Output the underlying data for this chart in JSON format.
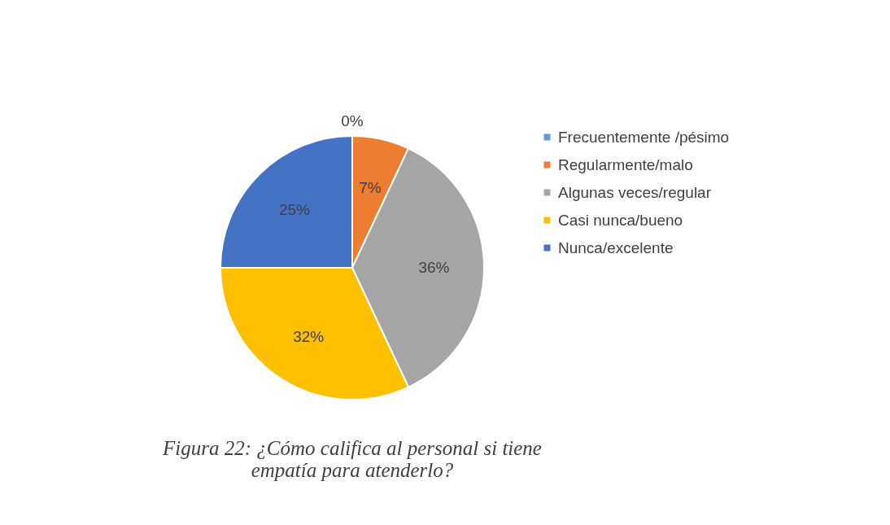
{
  "chart_data": {
    "type": "pie",
    "categories": [
      "Frecuentemente /pésimo",
      "Regularmente/malo",
      "Algunas veces/regular",
      "Casi nunca/bueno",
      "Nunca/excelente"
    ],
    "values": [
      0,
      7,
      36,
      32,
      25
    ],
    "colors": [
      "#5b9bd5",
      "#ed7d31",
      "#a5a5a5",
      "#ffc000",
      "#4472c4"
    ],
    "value_labels": [
      "0%",
      "7%",
      "36%",
      "32%",
      "25%"
    ],
    "legend": "right",
    "annotations": [
      "Figura 22: ¿Cómo califica al personal si tiene empatía para atenderlo?"
    ]
  }
}
